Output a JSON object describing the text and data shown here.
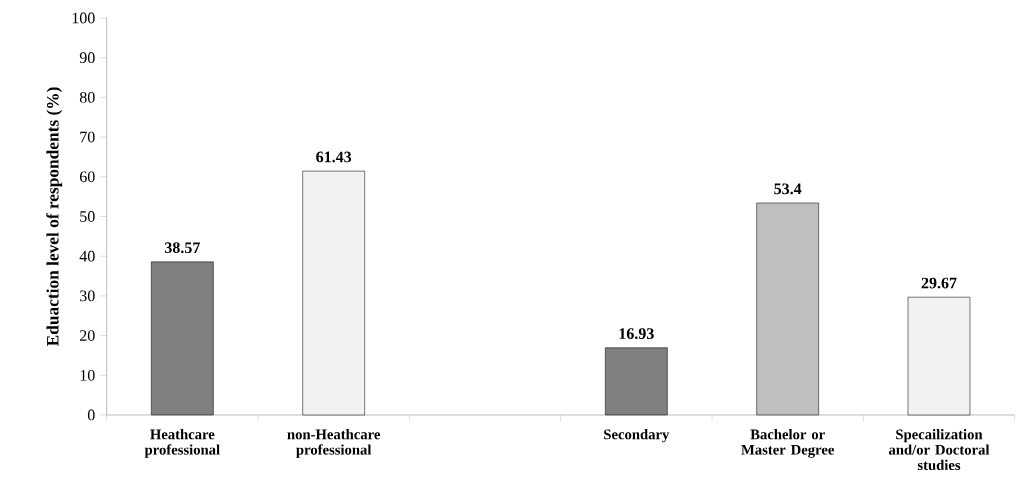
{
  "chart_data": {
    "type": "bar",
    "ylabel": "Eduaction level of respondents (%)",
    "categories": [
      "Heathcare professional",
      "non-Heathcare professional",
      null,
      "Secondary",
      "Bachelor or Master Degree",
      "Specailization and/or Doctoral studies"
    ],
    "values": [
      38.57,
      61.43,
      null,
      16.93,
      53.4,
      29.67
    ],
    "colors": [
      "#808080",
      "#f2f2f2",
      "#ffffff",
      "#808080",
      "#bfbfbf",
      "#f2f2f2"
    ],
    "ylim": [
      0,
      100
    ],
    "yticks": [
      0,
      10,
      20,
      30,
      40,
      50,
      60,
      70,
      80,
      90,
      100
    ],
    "data_labels": true,
    "grid": false
  }
}
